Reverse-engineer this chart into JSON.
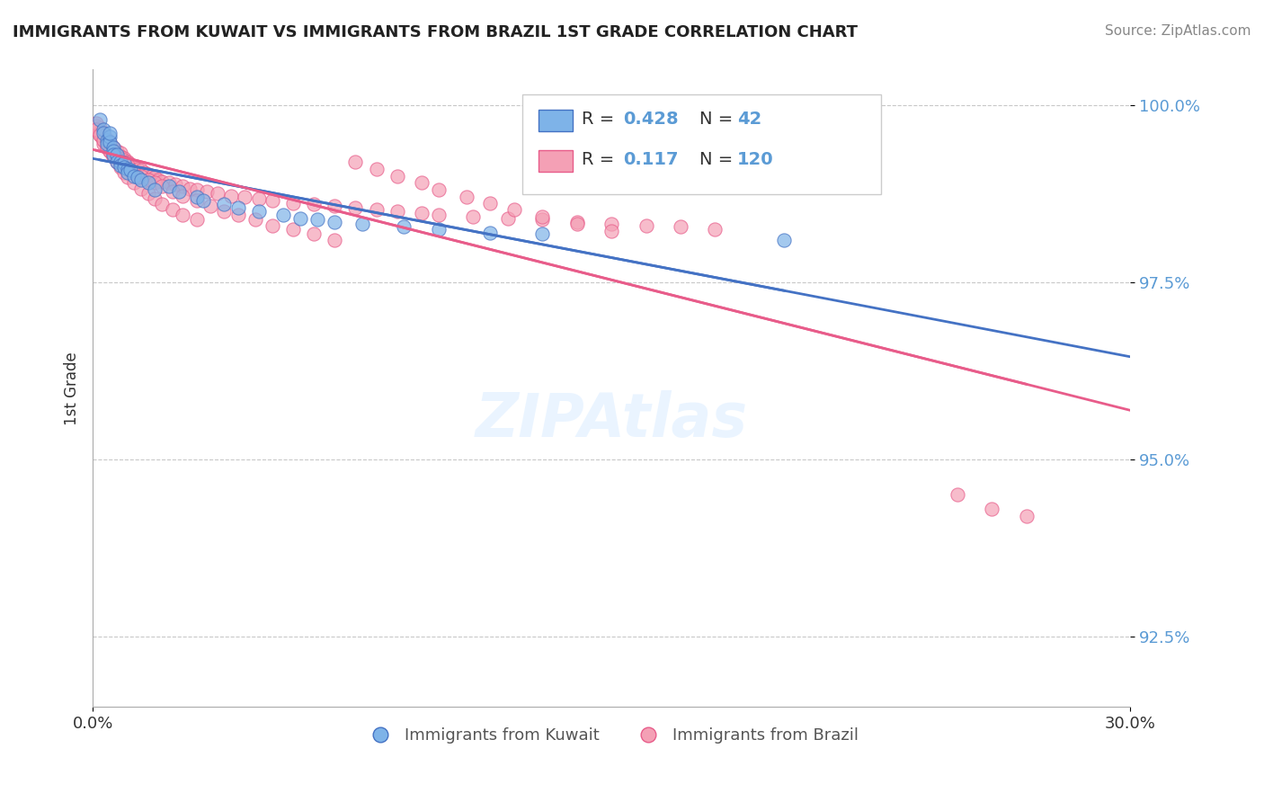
{
  "title": "IMMIGRANTS FROM KUWAIT VS IMMIGRANTS FROM BRAZIL 1ST GRADE CORRELATION CHART",
  "source_text": "Source: ZipAtlas.com",
  "xlabel": "",
  "ylabel": "1st Grade",
  "xlim": [
    0.0,
    0.3
  ],
  "ylim": [
    0.915,
    1.005
  ],
  "yticks": [
    0.925,
    0.95,
    0.975,
    1.0
  ],
  "ytick_labels": [
    "92.5%",
    "95.0%",
    "97.5%",
    "100.0%"
  ],
  "xticks": [
    0.0,
    0.3
  ],
  "xtick_labels": [
    "0.0%",
    "30.0%"
  ],
  "R_kuwait": 0.428,
  "N_kuwait": 42,
  "R_brazil": 0.117,
  "N_brazil": 120,
  "color_kuwait": "#7EB3E8",
  "color_brazil": "#F4A0B5",
  "line_color_kuwait": "#4472C4",
  "line_color_brazil": "#E85C8A",
  "background_color": "#FFFFFF",
  "grid_color": "#C8C8C8",
  "title_color": "#222222",
  "source_color": "#888888",
  "legend_label_kuwait": "Immigrants from Kuwait",
  "legend_label_brazil": "Immigrants from Brazil",
  "kuwait_x": [
    0.002,
    0.003,
    0.003,
    0.004,
    0.004,
    0.005,
    0.005,
    0.005,
    0.006,
    0.006,
    0.006,
    0.007,
    0.007,
    0.008,
    0.008,
    0.009,
    0.009,
    0.01,
    0.01,
    0.011,
    0.012,
    0.013,
    0.014,
    0.016,
    0.018,
    0.022,
    0.025,
    0.03,
    0.032,
    0.038,
    0.042,
    0.048,
    0.055,
    0.06,
    0.065,
    0.07,
    0.078,
    0.09,
    0.1,
    0.115,
    0.13,
    0.2
  ],
  "kuwait_y": [
    0.998,
    0.9965,
    0.996,
    0.995,
    0.9945,
    0.9955,
    0.9948,
    0.996,
    0.994,
    0.9935,
    0.993,
    0.993,
    0.992,
    0.992,
    0.9915,
    0.9918,
    0.9912,
    0.991,
    0.9905,
    0.9908,
    0.99,
    0.9898,
    0.9895,
    0.989,
    0.988,
    0.9885,
    0.9878,
    0.987,
    0.9865,
    0.986,
    0.9855,
    0.985,
    0.9845,
    0.984,
    0.9838,
    0.9835,
    0.9832,
    0.9828,
    0.9825,
    0.982,
    0.9818,
    0.981
  ],
  "brazil_x": [
    0.001,
    0.001,
    0.002,
    0.002,
    0.002,
    0.003,
    0.003,
    0.003,
    0.004,
    0.004,
    0.004,
    0.005,
    0.005,
    0.005,
    0.006,
    0.006,
    0.006,
    0.007,
    0.007,
    0.008,
    0.008,
    0.009,
    0.009,
    0.01,
    0.01,
    0.011,
    0.012,
    0.013,
    0.014,
    0.015,
    0.016,
    0.017,
    0.018,
    0.019,
    0.02,
    0.022,
    0.024,
    0.026,
    0.028,
    0.03,
    0.033,
    0.036,
    0.04,
    0.044,
    0.048,
    0.052,
    0.058,
    0.064,
    0.07,
    0.076,
    0.082,
    0.088,
    0.095,
    0.1,
    0.11,
    0.12,
    0.13,
    0.14,
    0.15,
    0.16,
    0.17,
    0.18,
    0.001,
    0.002,
    0.003,
    0.004,
    0.005,
    0.006,
    0.007,
    0.008,
    0.009,
    0.01,
    0.012,
    0.014,
    0.016,
    0.018,
    0.02,
    0.023,
    0.026,
    0.03,
    0.034,
    0.038,
    0.042,
    0.047,
    0.052,
    0.058,
    0.064,
    0.07,
    0.076,
    0.082,
    0.088,
    0.095,
    0.1,
    0.108,
    0.115,
    0.122,
    0.13,
    0.14,
    0.15,
    0.001,
    0.002,
    0.003,
    0.004,
    0.005,
    0.006,
    0.007,
    0.008,
    0.009,
    0.01,
    0.012,
    0.014,
    0.016,
    0.018,
    0.02,
    0.023,
    0.026,
    0.03,
    0.25,
    0.26,
    0.27
  ],
  "brazil_y": [
    0.997,
    0.9965,
    0.9968,
    0.9962,
    0.9958,
    0.996,
    0.9955,
    0.995,
    0.9952,
    0.9948,
    0.9945,
    0.9948,
    0.9942,
    0.9938,
    0.994,
    0.9935,
    0.9932,
    0.9935,
    0.993,
    0.9932,
    0.9928,
    0.9925,
    0.9922,
    0.992,
    0.9918,
    0.9915,
    0.9912,
    0.991,
    0.9908,
    0.9905,
    0.9902,
    0.99,
    0.9898,
    0.9895,
    0.9892,
    0.989,
    0.9888,
    0.9885,
    0.9882,
    0.988,
    0.9878,
    0.9875,
    0.9872,
    0.987,
    0.9868,
    0.9865,
    0.9862,
    0.986,
    0.9858,
    0.9855,
    0.9852,
    0.985,
    0.9848,
    0.9845,
    0.9842,
    0.984,
    0.9838,
    0.9835,
    0.9832,
    0.983,
    0.9828,
    0.9825,
    0.9975,
    0.996,
    0.9945,
    0.994,
    0.9935,
    0.9928,
    0.9925,
    0.992,
    0.9918,
    0.9915,
    0.9905,
    0.99,
    0.9895,
    0.989,
    0.9885,
    0.9878,
    0.9872,
    0.9865,
    0.9858,
    0.985,
    0.9845,
    0.9838,
    0.983,
    0.9825,
    0.9818,
    0.981,
    0.992,
    0.991,
    0.99,
    0.989,
    0.988,
    0.987,
    0.9862,
    0.9852,
    0.9842,
    0.9832,
    0.9822,
    0.9965,
    0.9958,
    0.995,
    0.9942,
    0.9935,
    0.9928,
    0.992,
    0.9912,
    0.9905,
    0.9898,
    0.989,
    0.9882,
    0.9875,
    0.9868,
    0.986,
    0.9852,
    0.9845,
    0.9838,
    0.945,
    0.943,
    0.942
  ]
}
